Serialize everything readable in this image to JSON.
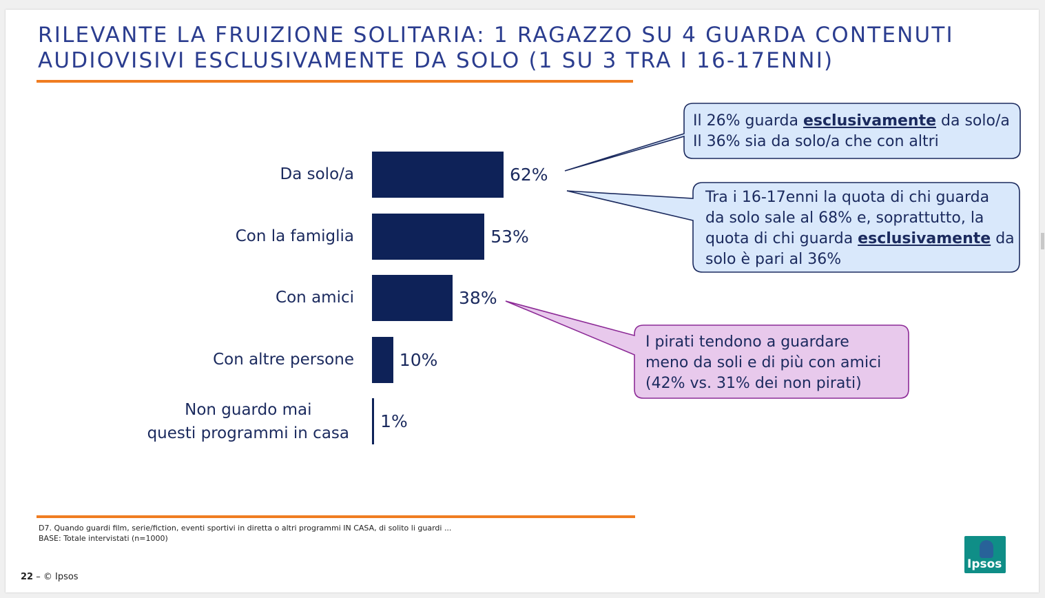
{
  "slide": {
    "title": "RILEVANTE LA FRUIZIONE SOLITARIA: 1 RAGAZZO SU 4 GUARDA CONTENUTI\nAUDIOVISIVI ESCLUSIVAMENTE DA SOLO (1 SU 3 TRA I 16-17ENNI)"
  },
  "chart_data": {
    "type": "bar",
    "orientation": "horizontal",
    "categories": [
      "Da solo/a",
      "Con la famiglia",
      "Con amici",
      "Con altre persone",
      "Non guardo mai\nquesti programmi in casa"
    ],
    "values": [
      62,
      53,
      38,
      10,
      1
    ],
    "value_labels": [
      "62%",
      "53%",
      "38%",
      "10%",
      "1%"
    ],
    "unit": "%",
    "color": "#0e2258"
  },
  "callouts": [
    {
      "lines": [
        [
          {
            "t": "Il 26% guarda "
          },
          {
            "t": "esclusivamente",
            "b": true
          },
          {
            "t": " da solo/a"
          }
        ],
        [
          {
            "t": "Il 36% sia da solo/a che con altri"
          }
        ]
      ],
      "fill": "#d9e8fb",
      "stroke": "#1b2a5e"
    },
    {
      "lines": [
        [
          {
            "t": "Tra i 16-17enni la quota di chi guarda"
          }
        ],
        [
          {
            "t": "da solo sale al 68% e, soprattutto, la"
          }
        ],
        [
          {
            "t": "quota di chi guarda "
          },
          {
            "t": "esclusivamente",
            "b": true
          },
          {
            "t": " da"
          }
        ],
        [
          {
            "t": "solo è pari al 36%"
          }
        ]
      ],
      "fill": "#d9e8fb",
      "stroke": "#1b2a5e"
    },
    {
      "lines": [
        [
          {
            "t": "I pirati tendono a guardare"
          }
        ],
        [
          {
            "t": "meno da soli e di più con amici"
          }
        ],
        [
          {
            "t": "(42% vs. 31% dei non pirati)"
          }
        ]
      ],
      "fill": "#e8c9ec",
      "stroke": "#8c2a96"
    }
  ],
  "notes": {
    "question": "D7. Quando guardi film, serie/fiction, eventi sportivi in diretta o altri programmi IN CASA, di solito li guardi ...",
    "base": "BASE: Totale intervistati (n=1000)"
  },
  "footer": {
    "page_number": "22",
    "copyright": "– © Ipsos"
  },
  "logo": {
    "text": "Ipsos",
    "color": "#0f8e87"
  }
}
